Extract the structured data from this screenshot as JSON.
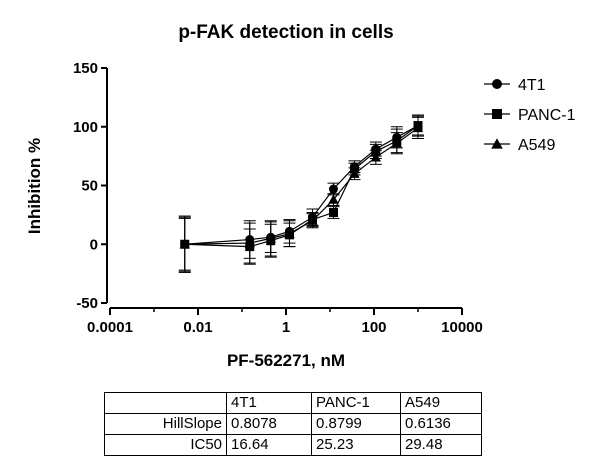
{
  "chart_data": {
    "type": "scatter",
    "title": "p-FAK detection in cells",
    "xlabel": "PF-562271, nM",
    "ylabel": "Inhibition %",
    "xscale": "log",
    "xlim": [
      0.0001,
      10000
    ],
    "ylim": [
      -50,
      150
    ],
    "xticks": [
      0.0001,
      0.01,
      1,
      100,
      10000
    ],
    "xtick_labels": [
      "0.0001",
      "0.01",
      "1",
      "100",
      "10000"
    ],
    "yticks": [
      -50,
      0,
      50,
      100,
      150
    ],
    "ytick_labels": [
      "-50",
      "0",
      "50",
      "100",
      "150"
    ],
    "legend_position": "top-right",
    "x": [
      0.005,
      0.15,
      0.45,
      1.2,
      4,
      12,
      36,
      110,
      330,
      1000
    ],
    "series": [
      {
        "name": "4T1",
        "marker": "circle",
        "y": [
          0,
          4,
          6,
          11,
          23,
          47,
          66,
          81,
          91,
          101
        ],
        "err": [
          24,
          16,
          13,
          10,
          7,
          5,
          5,
          6,
          9,
          8
        ]
      },
      {
        "name": "PANC-1",
        "marker": "square",
        "y": [
          0,
          -2,
          3,
          8,
          21,
          27,
          64,
          79,
          88,
          101
        ],
        "err": [
          22,
          15,
          14,
          10,
          6,
          5,
          5,
          6,
          10,
          9
        ]
      },
      {
        "name": "A549",
        "marker": "triangle",
        "y": [
          0,
          1,
          5,
          9,
          20,
          38,
          60,
          74,
          86,
          99
        ],
        "err": [
          23,
          17,
          15,
          11,
          6,
          5,
          5,
          6,
          9,
          9
        ]
      }
    ]
  },
  "table": {
    "columns": [
      "",
      "4T1",
      "PANC-1",
      "A549"
    ],
    "rows": [
      {
        "label": "HillSlope",
        "values": [
          "0.8078",
          "0.8799",
          "0.6136"
        ]
      },
      {
        "label": "IC50",
        "values": [
          "16.64",
          "25.23",
          "29.48"
        ]
      }
    ]
  }
}
